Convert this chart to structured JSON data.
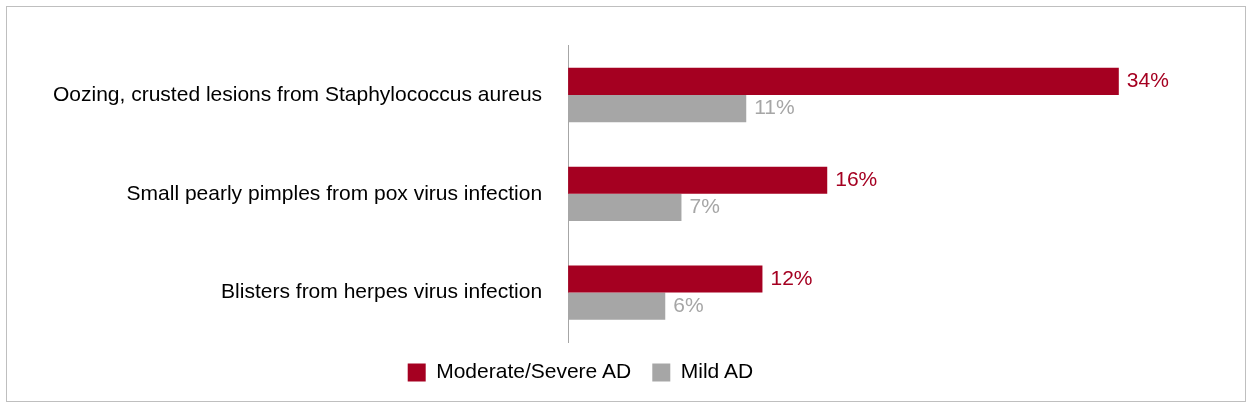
{
  "chart_data": {
    "type": "bar",
    "orientation": "horizontal",
    "categories": [
      "Oozing, crusted lesions from Staphylococcus aureus",
      "Small pearly pimples from pox virus infection",
      "Blisters from herpes virus infection"
    ],
    "series": [
      {
        "name": "Moderate/Severe AD",
        "color": "#a50021",
        "values": [
          34,
          16,
          12
        ],
        "value_labels": [
          "34%",
          "16%",
          "12%"
        ]
      },
      {
        "name": "Mild AD",
        "color": "#a6a6a6",
        "values": [
          11,
          7,
          6
        ],
        "value_labels": [
          "11%",
          "7%",
          "6%"
        ]
      }
    ],
    "tick_labels": "y",
    "grid": false,
    "legend": "bottom"
  }
}
